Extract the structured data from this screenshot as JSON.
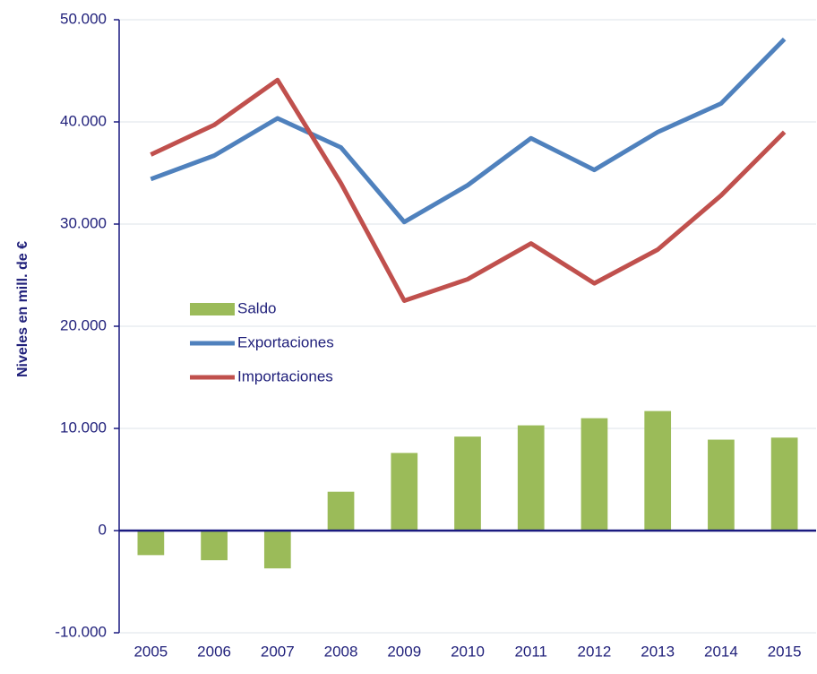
{
  "chart_data": {
    "type": "bar",
    "y_axis_label": "Niveles en mill. de €",
    "categories": [
      "2005",
      "2006",
      "2007",
      "2008",
      "2009",
      "2010",
      "2011",
      "2012",
      "2013",
      "2014",
      "2015"
    ],
    "series": [
      {
        "name": "Saldo",
        "type": "bar",
        "color": "#9bbb59",
        "values": [
          -2400,
          -2900,
          -3700,
          3800,
          7600,
          9200,
          10300,
          11000,
          11700,
          8900,
          9100
        ]
      },
      {
        "name": "Exportaciones",
        "type": "line",
        "color": "#4f81bd",
        "values": [
          34400,
          36700,
          40350,
          37500,
          30200,
          33800,
          38400,
          35300,
          39000,
          41800,
          48100
        ]
      },
      {
        "name": "Importaciones",
        "type": "line",
        "color": "#c0504d",
        "values": [
          36800,
          39700,
          44100,
          34000,
          22500,
          24600,
          28100,
          24200,
          27500,
          32800,
          39000
        ]
      }
    ],
    "ylim": [
      -10000,
      50000
    ],
    "yticks": [
      {
        "value": -10000,
        "label": "-10.000"
      },
      0,
      {
        "value": 10000,
        "label": "10.000"
      },
      {
        "value": 20000,
        "label": "20.000"
      },
      {
        "value": 30000,
        "label": "30.000"
      },
      {
        "value": 40000,
        "label": "40.000"
      },
      {
        "value": 50000,
        "label": "50.000"
      }
    ],
    "grid": true
  }
}
